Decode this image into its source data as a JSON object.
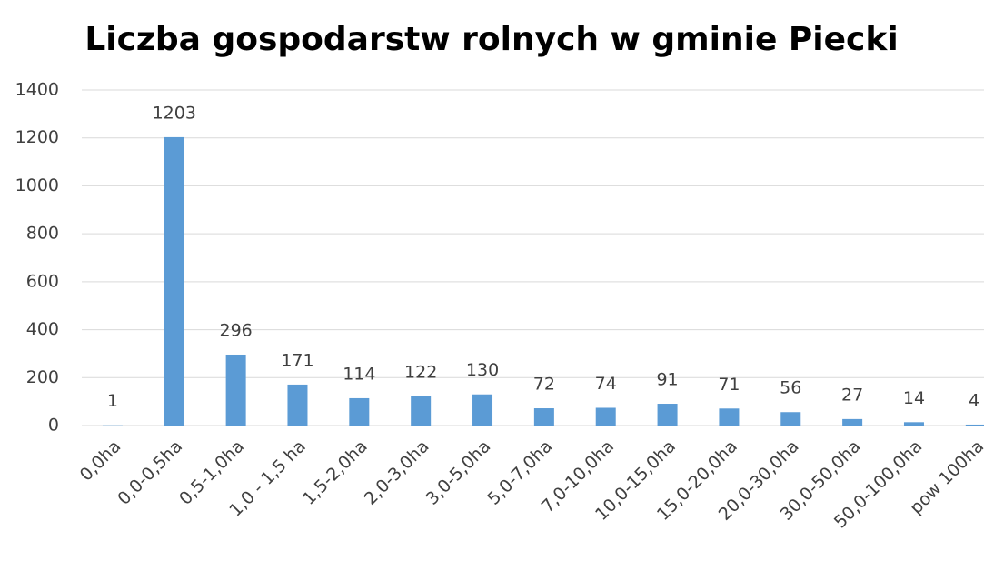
{
  "chart_data": {
    "type": "bar",
    "title": "Liczba gospodarstw rolnych w gminie Piecki",
    "categories": [
      "0,0ha",
      "0,0-0,5ha",
      "0,5-1,0ha",
      "1,0 - 1,5 ha",
      "1,5-2,0ha",
      "2,0-3,0ha",
      "3,0-5,0ha",
      "5,0-7,0ha",
      "7,0-10,0ha",
      "10,0-15,0ha",
      "15,0-20,0ha",
      "20,0-30,0ha",
      "30,0-50,0ha",
      "50,0-100,0ha",
      "pow 100ha"
    ],
    "values": [
      1,
      1203,
      296,
      171,
      114,
      122,
      130,
      72,
      74,
      91,
      71,
      56,
      27,
      14,
      4
    ],
    "color": "#5b9bd5",
    "ylim": [
      0,
      1400
    ],
    "yticks": [
      0,
      200,
      400,
      600,
      800,
      1000,
      1200,
      1400
    ],
    "grid": true
  }
}
